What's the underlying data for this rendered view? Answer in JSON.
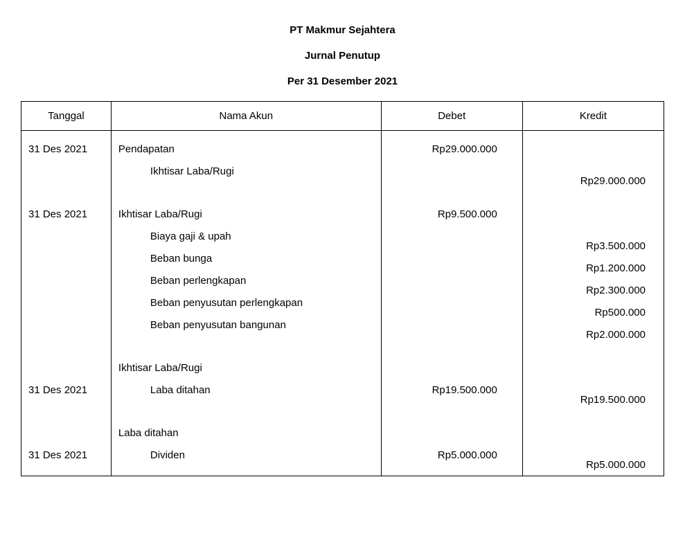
{
  "header": {
    "company": "PT Makmur Sejahtera",
    "report_title": "Jurnal Penutup",
    "period": "Per 31 Desember 2021"
  },
  "columns": {
    "date": "Tanggal",
    "name": "Nama Akun",
    "debet": "Debet",
    "kredit": "Kredit"
  },
  "rows": {
    "r0": {
      "date": "31 Des 2021",
      "name": "Pendapatan",
      "debet": "Rp29.000.000",
      "kredit": ""
    },
    "r1": {
      "date": "",
      "name": "Ikhtisar Laba/Rugi",
      "debet": "",
      "kredit": "Rp29.000.000"
    },
    "r2": {
      "date": "",
      "name": "",
      "debet": "",
      "kredit": ""
    },
    "r3": {
      "date": "31 Des 2021",
      "name": "Ikhtisar Laba/Rugi",
      "debet": "Rp9.500.000",
      "kredit": ""
    },
    "r4": {
      "date": "",
      "name": "Biaya gaji & upah",
      "debet": "",
      "kredit": "Rp3.500.000"
    },
    "r5": {
      "date": "",
      "name": "Beban bunga",
      "debet": "",
      "kredit": "Rp1.200.000"
    },
    "r6": {
      "date": "",
      "name": "Beban perlengkapan",
      "debet": "",
      "kredit": "Rp2.300.000"
    },
    "r7": {
      "date": "",
      "name": "Beban penyusutan perlengkapan",
      "debet": "",
      "kredit": "Rp500.000"
    },
    "r8": {
      "date": "",
      "name": "Beban penyusutan bangunan",
      "debet": "",
      "kredit": "Rp2.000.000"
    },
    "r9": {
      "date": "",
      "name": "",
      "debet": "",
      "kredit": ""
    },
    "r10": {
      "date": "",
      "name": "Ikhtisar Laba/Rugi",
      "debet": "",
      "kredit": ""
    },
    "r11": {
      "date": "31 Des 2021",
      "name": "Laba ditahan",
      "debet": "Rp19.500.000",
      "kredit": "Rp19.500.000"
    },
    "r12": {
      "date": "",
      "name": "",
      "debet": "",
      "kredit": ""
    },
    "r13": {
      "date": "",
      "name": "Laba ditahan",
      "debet": "",
      "kredit": ""
    },
    "r14": {
      "date": "31 Des 2021",
      "name": "Dividen",
      "debet": "Rp5.000.000",
      "kredit": "Rp5.000.000"
    }
  },
  "style": {
    "text_color": "#000000",
    "background_color": "#ffffff",
    "border_color": "#000000",
    "font_family": "Arial",
    "header_fontsize": 15,
    "body_fontsize": 15
  }
}
